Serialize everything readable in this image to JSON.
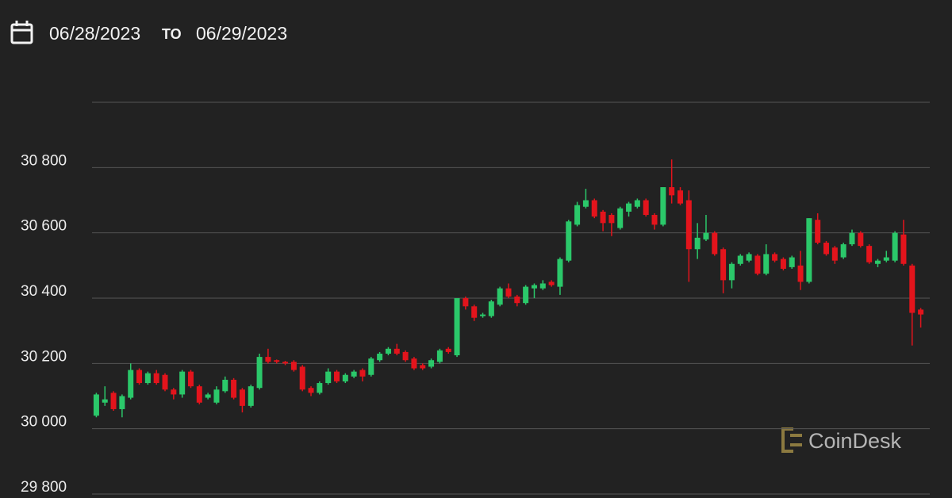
{
  "chart_data": {
    "type": "candlestick",
    "date_from": "06/28/2023",
    "date_separator": "TO",
    "date_to": "06/29/2023",
    "watermark": "CoinDesk",
    "up_color": "#2bc86a",
    "down_color": "#e3141c",
    "grid": true,
    "ylim": [
      29800,
      31000
    ],
    "yticks": [
      {
        "value": 29800,
        "label": "29 800"
      },
      {
        "value": 30000,
        "label": "30 000"
      },
      {
        "value": 30200,
        "label": "30 200"
      },
      {
        "value": 30400,
        "label": "30 400"
      },
      {
        "value": 30600,
        "label": "30 600"
      },
      {
        "value": 30800,
        "label": "30 800"
      }
    ],
    "open": [
      30040,
      30080,
      30110,
      30060,
      30095,
      30180,
      30140,
      30170,
      30165,
      30120,
      30105,
      30175,
      30130,
      30095,
      30080,
      30115,
      30150,
      30120,
      30070,
      30125,
      30220,
      30210,
      30205,
      30205,
      30190,
      30125,
      30110,
      30140,
      30175,
      30145,
      30160,
      30180,
      30165,
      30210,
      30230,
      30245,
      30235,
      30215,
      30195,
      30190,
      30205,
      30245,
      30225,
      30400,
      30375,
      30345,
      30345,
      30380,
      30430,
      30405,
      30385,
      30430,
      30430,
      30450,
      30435,
      30515,
      30625,
      30680,
      30700,
      30665,
      30655,
      30615,
      30665,
      30680,
      30700,
      30655,
      30625,
      30740,
      30730,
      30700,
      30550,
      30580,
      30600,
      30550,
      30455,
      30505,
      30515,
      30530,
      30475,
      30535,
      30520,
      30495,
      30500,
      30450,
      30640,
      30570,
      30555,
      30525,
      30565,
      30600,
      30560,
      30505,
      30515,
      30515,
      30595,
      30500,
      30365
    ],
    "high": [
      30110,
      30130,
      30115,
      30105,
      30200,
      30185,
      30175,
      30180,
      30170,
      30125,
      30180,
      30180,
      30135,
      30110,
      30130,
      30160,
      30155,
      30125,
      30135,
      30230,
      30245,
      30212,
      30208,
      30210,
      30195,
      30130,
      30145,
      30185,
      30180,
      30170,
      30180,
      30185,
      30220,
      30235,
      30250,
      30260,
      30240,
      30220,
      30200,
      30215,
      30245,
      30250,
      30400,
      30405,
      30380,
      30355,
      30395,
      30435,
      30445,
      30410,
      30440,
      30445,
      30455,
      30455,
      30525,
      30640,
      30695,
      30735,
      30705,
      30670,
      30660,
      30680,
      30695,
      30705,
      30705,
      30660,
      30740,
      30825,
      30740,
      30730,
      30630,
      30655,
      30605,
      30555,
      30510,
      30535,
      30540,
      30535,
      30565,
      30540,
      30525,
      30530,
      30545,
      30645,
      30660,
      30575,
      30560,
      30570,
      30610,
      30605,
      30565,
      30520,
      30545,
      30605,
      30640,
      30505,
      30370
    ],
    "low": [
      30035,
      30070,
      30055,
      30035,
      30090,
      30135,
      30135,
      30135,
      30115,
      30090,
      30095,
      30125,
      30075,
      30090,
      30075,
      30110,
      30090,
      30050,
      30065,
      30120,
      30200,
      30200,
      30195,
      30175,
      30115,
      30100,
      30105,
      30135,
      30140,
      30140,
      30155,
      30145,
      30160,
      30205,
      30225,
      30225,
      30205,
      30180,
      30180,
      30185,
      30200,
      30230,
      30220,
      30365,
      30330,
      30340,
      30340,
      30375,
      30400,
      30375,
      30380,
      30400,
      30425,
      30435,
      30410,
      30510,
      30620,
      30675,
      30645,
      30605,
      30590,
      30610,
      30650,
      30675,
      30650,
      30610,
      30620,
      30690,
      30685,
      30450,
      30520,
      30575,
      30530,
      30415,
      30430,
      30500,
      30510,
      30470,
      30470,
      30510,
      30485,
      30490,
      30425,
      30445,
      30565,
      30530,
      30505,
      30520,
      30560,
      30555,
      30505,
      30495,
      30510,
      30510,
      30500,
      30255,
      30310
    ],
    "close": [
      30105,
      30090,
      30060,
      30100,
      30180,
      30140,
      30170,
      30140,
      30120,
      30105,
      30175,
      30130,
      30080,
      30105,
      30120,
      30150,
      30095,
      30070,
      30130,
      30220,
      30205,
      30205,
      30200,
      30180,
      30120,
      30110,
      30140,
      30175,
      30145,
      30165,
      30175,
      30160,
      30215,
      30230,
      30245,
      30230,
      30210,
      30185,
      30185,
      30210,
      30240,
      30235,
      30400,
      30375,
      30340,
      30350,
      30390,
      30430,
      30405,
      30385,
      30435,
      30440,
      30445,
      30440,
      30520,
      30635,
      30685,
      30700,
      30650,
      30630,
      30630,
      30675,
      30690,
      30700,
      30655,
      30625,
      30740,
      30715,
      30690,
      30550,
      30585,
      30600,
      30535,
      30455,
      30505,
      30530,
      30535,
      30475,
      30535,
      30515,
      30490,
      30525,
      30450,
      30645,
      30570,
      30535,
      30515,
      30565,
      30600,
      30560,
      30510,
      30515,
      30525,
      30600,
      30505,
      30355,
      30350
    ]
  }
}
